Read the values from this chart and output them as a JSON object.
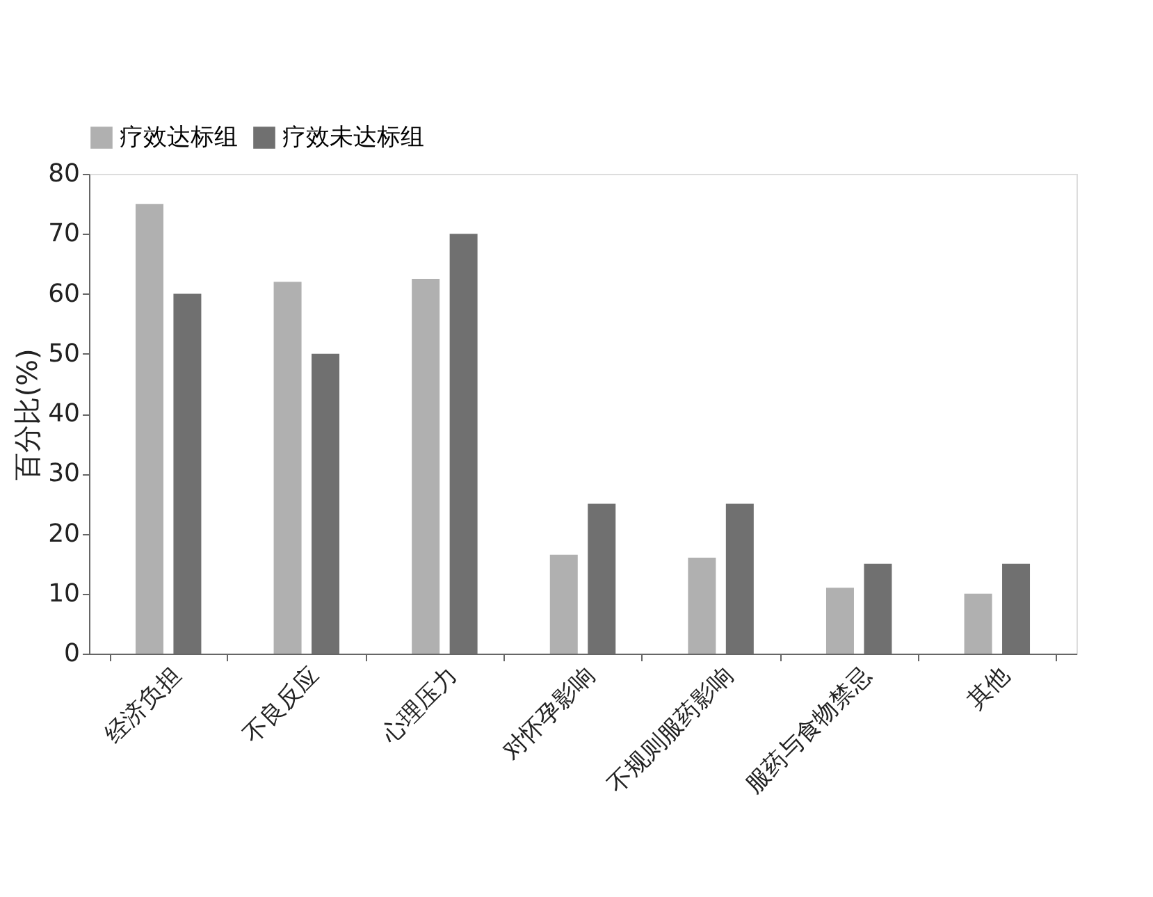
{
  "chart_data": {
    "type": "bar",
    "ylabel": "百分比(%)",
    "categories": [
      "经济负担",
      "不良反应",
      "心理压力",
      "对怀孕影响",
      "不规则服药影响",
      "服药与食物禁忌",
      "其他"
    ],
    "series": [
      {
        "name": "疗效达标组",
        "color": "#b0b0b0",
        "values": [
          75,
          62,
          62.5,
          16.5,
          16,
          11,
          10
        ]
      },
      {
        "name": "疗效未达标组",
        "color": "#707070",
        "values": [
          60,
          50,
          70,
          25,
          25,
          15,
          15
        ]
      }
    ],
    "ylim": [
      0,
      80
    ],
    "yticks": [
      0,
      10,
      20,
      30,
      40,
      50,
      60,
      70,
      80
    ],
    "grid": false,
    "legend": "top"
  }
}
